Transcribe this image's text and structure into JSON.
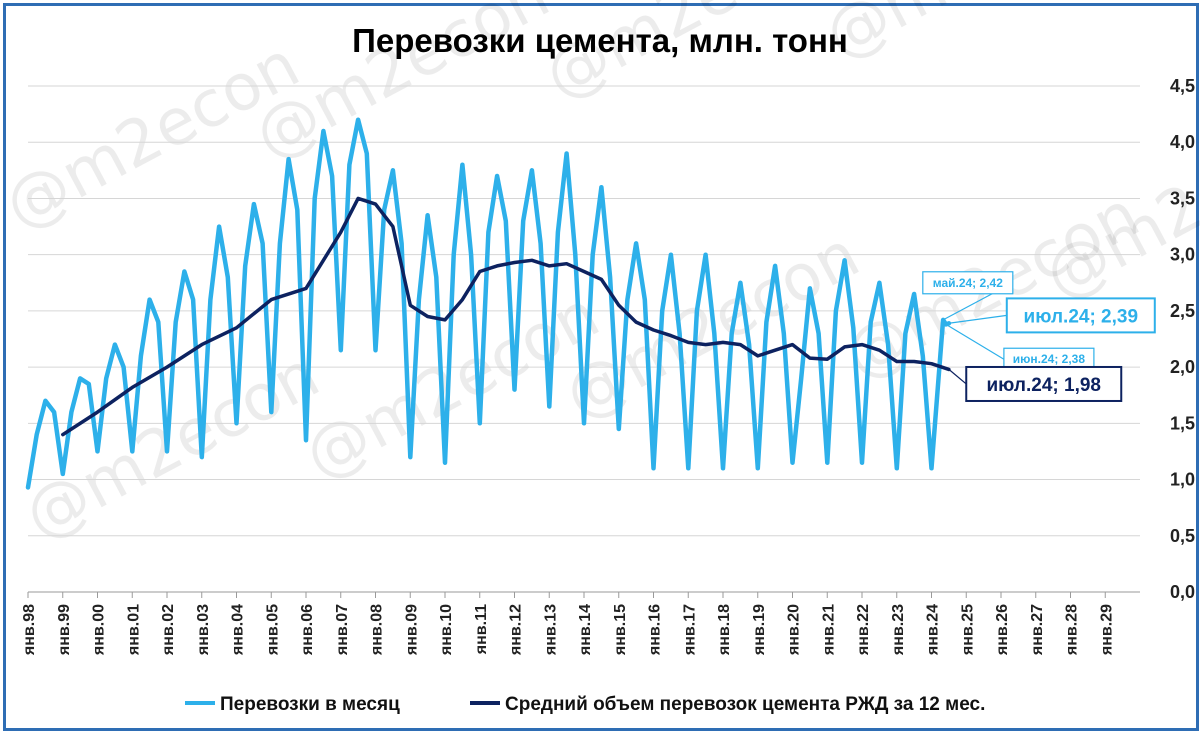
{
  "chart_data": {
    "type": "line",
    "title": "Перевозки цемента, млн. тонн",
    "xlabel": "",
    "ylabel": "",
    "ylim": [
      0,
      4.5
    ],
    "y_ticks": [
      "0,0",
      "0,5",
      "1,0",
      "1,5",
      "2,0",
      "2,5",
      "3,0",
      "3,5",
      "4,0",
      "4,5"
    ],
    "y_axis_side": "right",
    "grid": "horizontal",
    "legend_position": "bottom",
    "x_start": "1998-01",
    "x_end": "2030-01",
    "x_ticks": [
      "янв.98",
      "янв.99",
      "янв.00",
      "янв.01",
      "янв.02",
      "янв.03",
      "янв.04",
      "янв.05",
      "янв.06",
      "янв.07",
      "янв.08",
      "янв.09",
      "янв.10",
      "янв.11",
      "янв.12",
      "янв.13",
      "янв.14",
      "янв.15",
      "янв.16",
      "янв.17",
      "янв.18",
      "янв.19",
      "янв.20",
      "янв.21",
      "янв.22",
      "янв.23",
      "янв.24",
      "янв.25",
      "янв.26",
      "янв.27",
      "янв.28",
      "янв.29"
    ],
    "series": [
      {
        "name": "Перевозки в месяц",
        "color": "#2db0ea",
        "start": "1998-01",
        "frequency": "monthly",
        "points": [
          [
            "1998-01",
            0.93
          ],
          [
            "1998-04",
            1.4
          ],
          [
            "1998-07",
            1.7
          ],
          [
            "1998-10",
            1.6
          ],
          [
            "1999-01",
            1.05
          ],
          [
            "1999-04",
            1.6
          ],
          [
            "1999-07",
            1.9
          ],
          [
            "1999-10",
            1.85
          ],
          [
            "2000-01",
            1.25
          ],
          [
            "2000-04",
            1.9
          ],
          [
            "2000-07",
            2.2
          ],
          [
            "2000-10",
            2.0
          ],
          [
            "2001-01",
            1.25
          ],
          [
            "2001-04",
            2.1
          ],
          [
            "2001-07",
            2.6
          ],
          [
            "2001-10",
            2.4
          ],
          [
            "2002-01",
            1.25
          ],
          [
            "2002-04",
            2.4
          ],
          [
            "2002-07",
            2.85
          ],
          [
            "2002-10",
            2.6
          ],
          [
            "2003-01",
            1.2
          ],
          [
            "2003-04",
            2.6
          ],
          [
            "2003-07",
            3.25
          ],
          [
            "2003-10",
            2.8
          ],
          [
            "2004-01",
            1.5
          ],
          [
            "2004-04",
            2.9
          ],
          [
            "2004-07",
            3.45
          ],
          [
            "2004-10",
            3.1
          ],
          [
            "2005-01",
            1.6
          ],
          [
            "2005-04",
            3.1
          ],
          [
            "2005-07",
            3.85
          ],
          [
            "2005-10",
            3.4
          ],
          [
            "2006-01",
            1.35
          ],
          [
            "2006-04",
            3.5
          ],
          [
            "2006-07",
            4.1
          ],
          [
            "2006-10",
            3.7
          ],
          [
            "2007-01",
            2.15
          ],
          [
            "2007-04",
            3.8
          ],
          [
            "2007-07",
            4.2
          ],
          [
            "2007-10",
            3.9
          ],
          [
            "2008-01",
            2.15
          ],
          [
            "2008-04",
            3.4
          ],
          [
            "2008-07",
            3.75
          ],
          [
            "2008-10",
            3.1
          ],
          [
            "2009-01",
            1.2
          ],
          [
            "2009-04",
            2.6
          ],
          [
            "2009-07",
            3.35
          ],
          [
            "2009-10",
            2.8
          ],
          [
            "2010-01",
            1.15
          ],
          [
            "2010-04",
            3.0
          ],
          [
            "2010-07",
            3.8
          ],
          [
            "2010-10",
            3.0
          ],
          [
            "2011-01",
            1.5
          ],
          [
            "2011-04",
            3.2
          ],
          [
            "2011-07",
            3.7
          ],
          [
            "2011-10",
            3.3
          ],
          [
            "2012-01",
            1.8
          ],
          [
            "2012-04",
            3.3
          ],
          [
            "2012-07",
            3.75
          ],
          [
            "2012-10",
            3.1
          ],
          [
            "2013-01",
            1.65
          ],
          [
            "2013-04",
            3.2
          ],
          [
            "2013-07",
            3.9
          ],
          [
            "2013-10",
            3.0
          ],
          [
            "2014-01",
            1.5
          ],
          [
            "2014-04",
            3.0
          ],
          [
            "2014-07",
            3.6
          ],
          [
            "2014-10",
            2.8
          ],
          [
            "2015-01",
            1.45
          ],
          [
            "2015-04",
            2.6
          ],
          [
            "2015-07",
            3.1
          ],
          [
            "2015-10",
            2.6
          ],
          [
            "2016-01",
            1.1
          ],
          [
            "2016-04",
            2.5
          ],
          [
            "2016-07",
            3.0
          ],
          [
            "2016-10",
            2.3
          ],
          [
            "2017-01",
            1.1
          ],
          [
            "2017-04",
            2.5
          ],
          [
            "2017-07",
            3.0
          ],
          [
            "2017-10",
            2.3
          ],
          [
            "2018-01",
            1.1
          ],
          [
            "2018-04",
            2.3
          ],
          [
            "2018-07",
            2.75
          ],
          [
            "2018-10",
            2.2
          ],
          [
            "2019-01",
            1.1
          ],
          [
            "2019-04",
            2.4
          ],
          [
            "2019-07",
            2.9
          ],
          [
            "2019-10",
            2.3
          ],
          [
            "2020-01",
            1.15
          ],
          [
            "2020-04",
            1.9
          ],
          [
            "2020-07",
            2.7
          ],
          [
            "2020-10",
            2.3
          ],
          [
            "2021-01",
            1.15
          ],
          [
            "2021-04",
            2.5
          ],
          [
            "2021-07",
            2.95
          ],
          [
            "2021-10",
            2.35
          ],
          [
            "2022-01",
            1.15
          ],
          [
            "2022-04",
            2.4
          ],
          [
            "2022-07",
            2.75
          ],
          [
            "2022-10",
            2.2
          ],
          [
            "2023-01",
            1.1
          ],
          [
            "2023-04",
            2.3
          ],
          [
            "2023-07",
            2.65
          ],
          [
            "2023-10",
            2.1
          ],
          [
            "2024-01",
            1.1
          ],
          [
            "2024-05",
            2.42
          ],
          [
            "2024-06",
            2.38
          ],
          [
            "2024-07",
            2.39
          ]
        ]
      },
      {
        "name": "Средний объем перевозок цемента РЖД за 12 мес.",
        "color": "#0d2260",
        "frequency": "monthly",
        "points": [
          [
            "1999-01",
            1.4
          ],
          [
            "2000-01",
            1.6
          ],
          [
            "2001-01",
            1.82
          ],
          [
            "2002-01",
            2.0
          ],
          [
            "2003-01",
            2.2
          ],
          [
            "2004-01",
            2.35
          ],
          [
            "2005-01",
            2.6
          ],
          [
            "2006-01",
            2.7
          ],
          [
            "2006-07",
            2.95
          ],
          [
            "2007-01",
            3.2
          ],
          [
            "2007-07",
            3.5
          ],
          [
            "2008-01",
            3.45
          ],
          [
            "2008-07",
            3.25
          ],
          [
            "2009-01",
            2.55
          ],
          [
            "2009-07",
            2.45
          ],
          [
            "2010-01",
            2.42
          ],
          [
            "2010-07",
            2.6
          ],
          [
            "2011-01",
            2.85
          ],
          [
            "2011-07",
            2.9
          ],
          [
            "2012-01",
            2.93
          ],
          [
            "2012-07",
            2.95
          ],
          [
            "2013-01",
            2.9
          ],
          [
            "2013-07",
            2.92
          ],
          [
            "2014-01",
            2.85
          ],
          [
            "2014-07",
            2.78
          ],
          [
            "2015-01",
            2.55
          ],
          [
            "2015-07",
            2.4
          ],
          [
            "2016-01",
            2.33
          ],
          [
            "2016-07",
            2.28
          ],
          [
            "2017-01",
            2.22
          ],
          [
            "2017-07",
            2.2
          ],
          [
            "2018-01",
            2.22
          ],
          [
            "2018-07",
            2.2
          ],
          [
            "2019-01",
            2.1
          ],
          [
            "2019-07",
            2.15
          ],
          [
            "2020-01",
            2.2
          ],
          [
            "2020-07",
            2.08
          ],
          [
            "2021-01",
            2.07
          ],
          [
            "2021-07",
            2.18
          ],
          [
            "2022-01",
            2.2
          ],
          [
            "2022-07",
            2.15
          ],
          [
            "2023-01",
            2.05
          ],
          [
            "2023-07",
            2.05
          ],
          [
            "2024-01",
            2.03
          ],
          [
            "2024-07",
            1.98
          ]
        ]
      }
    ],
    "annotations": [
      {
        "text": "май.24; 2,42",
        "series": 0,
        "at": "2024-05",
        "style": "small",
        "box_x": "2023-10",
        "box_y": 2.75
      },
      {
        "text": "июл.24; 2,39",
        "series": 0,
        "at": "2024-07",
        "style": "big",
        "box_x": "2026-03",
        "box_y": 2.46
      },
      {
        "text": "июн.24; 2,38",
        "series": 0,
        "at": "2024-06",
        "style": "small",
        "box_x": "2026-02",
        "box_y": 2.07
      },
      {
        "text": "июл.24; 1,98",
        "series": 1,
        "at": "2024-07",
        "style": "big",
        "box_x": "2025-01",
        "box_y": 1.85
      }
    ]
  },
  "watermark": "@m2econ",
  "colors": {
    "frame": "#2e6db4",
    "grid": "#d6d6d6",
    "monthly": "#2db0ea",
    "avg": "#0d2260"
  }
}
